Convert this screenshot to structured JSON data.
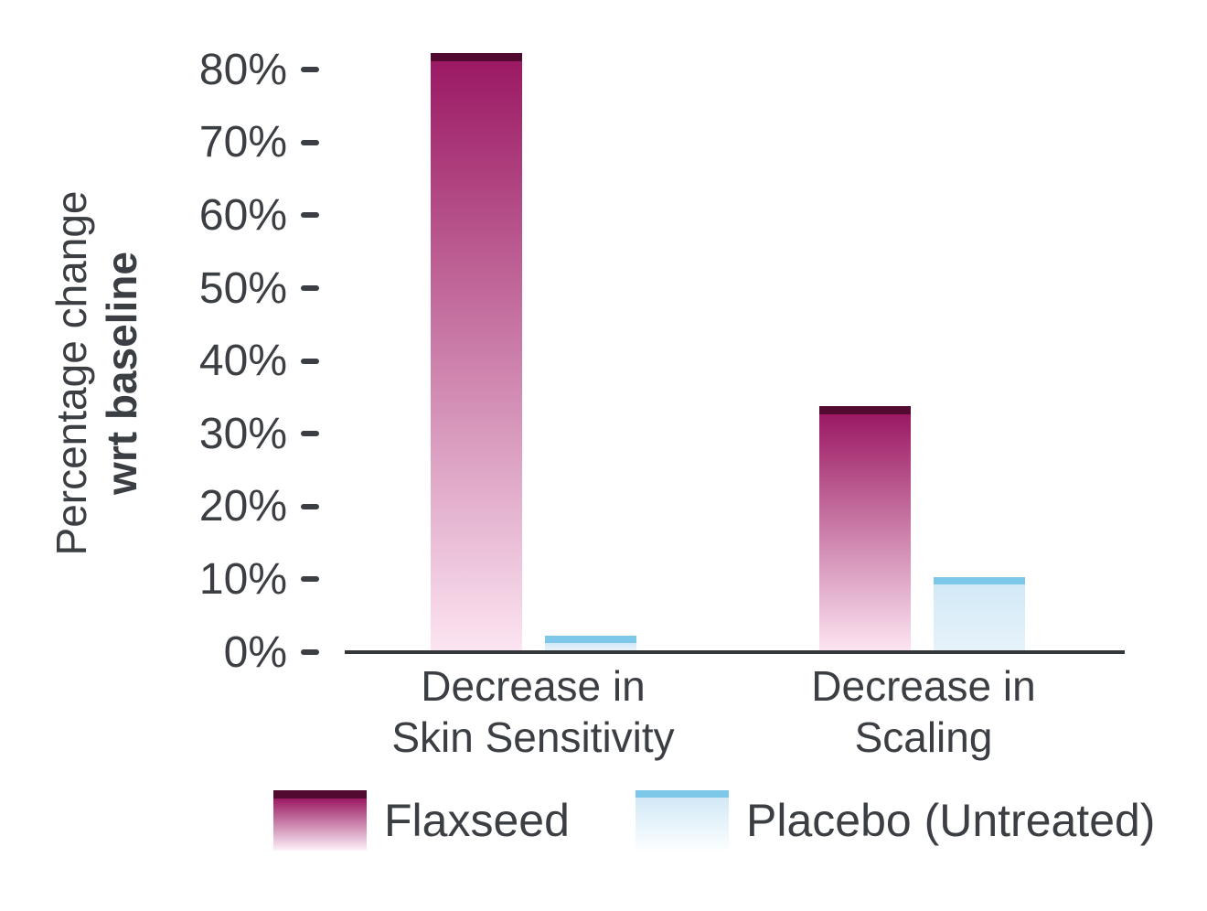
{
  "page": {
    "background": "#ffffff"
  },
  "chart_data": {
    "type": "bar",
    "title": "",
    "ylabel_lines": [
      "Percentage change",
      "wrt baseline"
    ],
    "xlabel": "",
    "categories": [
      {
        "lines": [
          "Decrease in",
          "Skin Sensitivity"
        ]
      },
      {
        "lines": [
          "Decrease in",
          "Scaling"
        ]
      }
    ],
    "series": [
      {
        "name": "Flaxseed",
        "values": [
          82,
          33.5
        ],
        "cap_color": "#520a31",
        "gradient_top": "#9b1963",
        "gradient_bottom": "#fce4f1",
        "legend_gradient_bottom": "#fdf2f9"
      },
      {
        "name": "Placebo (Untreated)",
        "values": [
          2,
          10
        ],
        "cap_color": "#7dc8e9",
        "gradient_top": "#d2e9f6",
        "gradient_bottom": "#e6f2fa",
        "legend_gradient_bottom": "#fcfeff"
      }
    ],
    "yticks": [
      0,
      10,
      20,
      30,
      40,
      50,
      60,
      70,
      80
    ],
    "ytick_suffix": "%",
    "ylim": [
      0,
      84
    ],
    "grid": false,
    "legend_position": "bottom",
    "text_color": "#3b3e42",
    "axis_color": "#33373b"
  }
}
